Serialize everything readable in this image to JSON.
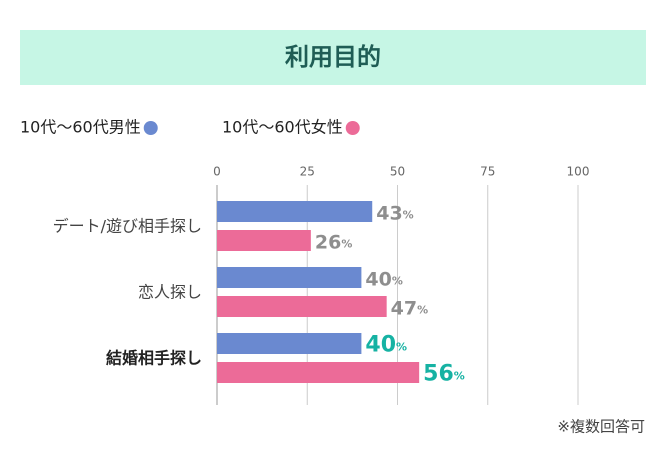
{
  "chart_data": {
    "type": "bar",
    "orientation": "horizontal",
    "title": "利用目的",
    "categories": [
      "デート/遊び相手探し",
      "恋人探し",
      "結婚相手探し"
    ],
    "series": [
      {
        "name": "10代〜60代男性",
        "color": "#6a89d0",
        "values": [
          43,
          40,
          40
        ]
      },
      {
        "name": "10代〜60代女性",
        "color": "#ec6b98",
        "values": [
          26,
          47,
          56
        ]
      }
    ],
    "value_unit": "%",
    "xlim": [
      0,
      100
    ],
    "xticks": [
      0,
      25,
      50,
      75,
      100
    ],
    "grid": true,
    "value_label_color": "#8e8e8e",
    "highlight_category": "結婚相手探し",
    "highlight_label_color": "#16b2a3",
    "note": "※複数回答可"
  }
}
